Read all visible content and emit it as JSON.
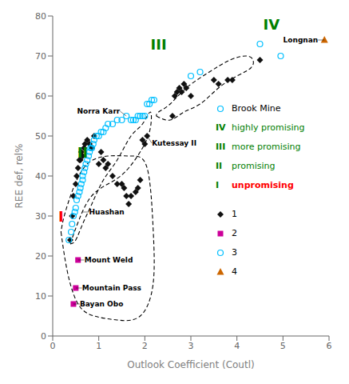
{
  "chart_data": {
    "type": "scatter",
    "xlabel": "Outlook Coefficient (Coutl)",
    "ylabel": "REE def, rel%",
    "xlim": [
      0,
      6
    ],
    "ylim": [
      0,
      80
    ],
    "xticks": [
      0,
      1,
      2,
      3,
      4,
      5,
      6
    ],
    "yticks": [
      0,
      10,
      20,
      30,
      40,
      50,
      60,
      70,
      80
    ],
    "grid": false,
    "legend": "right",
    "series": [
      {
        "name": "1",
        "marker": "diamond",
        "color": "#111111",
        "x": [
          0.38,
          0.42,
          0.45,
          0.5,
          0.52,
          0.55,
          0.58,
          0.6,
          0.62,
          0.65,
          0.68,
          0.7,
          0.75,
          0.8,
          0.85,
          0.9,
          1.0,
          1.05,
          1.1,
          1.15,
          1.2,
          1.3,
          1.4,
          1.5,
          1.55,
          1.6,
          1.65,
          1.7,
          1.8,
          1.85,
          1.9,
          1.95,
          2.0,
          2.05,
          2.6,
          2.65,
          2.7,
          2.75,
          2.8,
          2.85,
          2.9,
          3.0,
          3.5,
          3.6,
          3.8,
          3.9,
          4.5
        ],
        "values": [
          24,
          30,
          35,
          38,
          40,
          42,
          44,
          44,
          46,
          45,
          47,
          48,
          49,
          48,
          47,
          50,
          43,
          46,
          44,
          42,
          43,
          40,
          38,
          38,
          37,
          35,
          33,
          35,
          36,
          37,
          39,
          49,
          48,
          50,
          55,
          60,
          61,
          62,
          61,
          63,
          62,
          60,
          64,
          63,
          64,
          64,
          69
        ]
      },
      {
        "name": "2",
        "marker": "square",
        "color": "#cc0099",
        "x": [
          0.55,
          0.5,
          0.45
        ],
        "values": [
          19,
          12,
          8
        ]
      },
      {
        "name": "3",
        "marker": "circle",
        "color": "#00bfff",
        "x": [
          0.35,
          0.4,
          0.42,
          0.45,
          0.48,
          0.5,
          0.52,
          0.55,
          0.58,
          0.6,
          0.62,
          0.65,
          0.65,
          0.68,
          0.7,
          0.72,
          0.75,
          0.78,
          0.8,
          0.82,
          0.85,
          0.88,
          0.9,
          0.95,
          1.0,
          1.05,
          1.1,
          1.15,
          1.2,
          1.3,
          1.4,
          1.5,
          1.6,
          1.7,
          1.75,
          1.8,
          1.85,
          1.9,
          1.95,
          2.0,
          2.05,
          2.1,
          2.15,
          2.2,
          3.0,
          3.2,
          4.5,
          4.95
        ],
        "values": [
          24,
          26,
          28,
          30,
          31,
          32,
          34,
          35,
          36,
          37,
          38,
          39,
          40,
          41,
          42,
          43,
          44,
          45,
          46,
          47,
          47,
          48,
          49,
          50,
          50,
          51,
          51,
          52,
          53,
          53,
          54,
          54,
          55,
          54,
          54,
          54,
          55,
          55,
          55,
          55,
          58,
          58,
          59,
          59,
          65,
          66,
          73,
          70
        ]
      },
      {
        "name": "4",
        "marker": "triangle",
        "color": "#cc6600",
        "x": [
          5.9
        ],
        "values": [
          74
        ]
      }
    ],
    "boundaries": [
      {
        "type": "line",
        "line_style": "dashed",
        "color": "#000000",
        "x": [
          0.18,
          0.32,
          0.55,
          0.9,
          1.4,
          1.9,
          2.18,
          2.18,
          2.05,
          1.7,
          1.2,
          0.75,
          0.45,
          0.25,
          0.18
        ],
        "values": [
          26,
          16,
          8,
          5,
          4,
          5,
          13,
          27,
          42,
          45,
          45,
          43,
          37,
          30,
          26
        ]
      },
      {
        "type": "line",
        "line_style": "dashed",
        "color": "#000000",
        "x": [
          0.38,
          0.5,
          0.65,
          0.85,
          1.1,
          1.4,
          1.7,
          1.95,
          2.12,
          2.12,
          1.95,
          1.65,
          1.35,
          1.05,
          0.78,
          0.57,
          0.44,
          0.38
        ],
        "values": [
          23,
          24,
          28,
          33,
          39,
          44,
          50,
          53,
          56,
          52,
          47,
          42,
          39,
          37,
          34,
          29,
          25,
          23
        ]
      },
      {
        "type": "line",
        "line_style": "dashed",
        "color": "#000000",
        "x": [
          2.25,
          2.55,
          2.85,
          3.2,
          3.6,
          4.0,
          4.3,
          4.35,
          4.2,
          3.85,
          3.4,
          2.9,
          2.55,
          2.3,
          2.25
        ],
        "values": [
          55,
          54,
          56,
          58,
          62,
          65,
          67,
          69,
          70,
          69,
          66,
          62,
          58,
          56,
          55
        ]
      }
    ],
    "zone_labels": [
      {
        "text": "IV",
        "x": 4.75,
        "y": 78,
        "color": "#008000"
      },
      {
        "text": "III",
        "x": 2.3,
        "y": 73,
        "color": "#008000"
      },
      {
        "text": "II",
        "x": 0.65,
        "y": 46,
        "color": "#008000"
      },
      {
        "text": "I",
        "x": 0.18,
        "y": 30,
        "color": "#ff0000"
      }
    ],
    "annotations": [
      {
        "text": "Norra Karr",
        "x": 1.6,
        "y": 55
      },
      {
        "text": "Kutessay II",
        "x": 2.05,
        "y": 50
      },
      {
        "text": "Huashan",
        "x": 0.65,
        "y": 31
      },
      {
        "text": "Mount Weld",
        "x": 0.55,
        "y": 19
      },
      {
        "text": "Mountain Pass",
        "x": 0.5,
        "y": 12
      },
      {
        "text": "Bayan Obo",
        "x": 0.45,
        "y": 8
      },
      {
        "text": "Longnan",
        "x": 5.9,
        "y": 74
      }
    ],
    "key": [
      {
        "text": "Brook Mine",
        "marker": "circle"
      },
      {
        "label": "IV",
        "text": "highly promising",
        "label_color": "#008000",
        "color": "#008000"
      },
      {
        "label": "III",
        "text": "more promising",
        "label_color": "#008000",
        "color": "#008000"
      },
      {
        "label": "II",
        "text": "promising",
        "label_color": "#008000",
        "color": "#008000"
      },
      {
        "label": "I",
        "text": "unpromising",
        "label_color": "#008000",
        "color": "#ff0000"
      }
    ]
  }
}
